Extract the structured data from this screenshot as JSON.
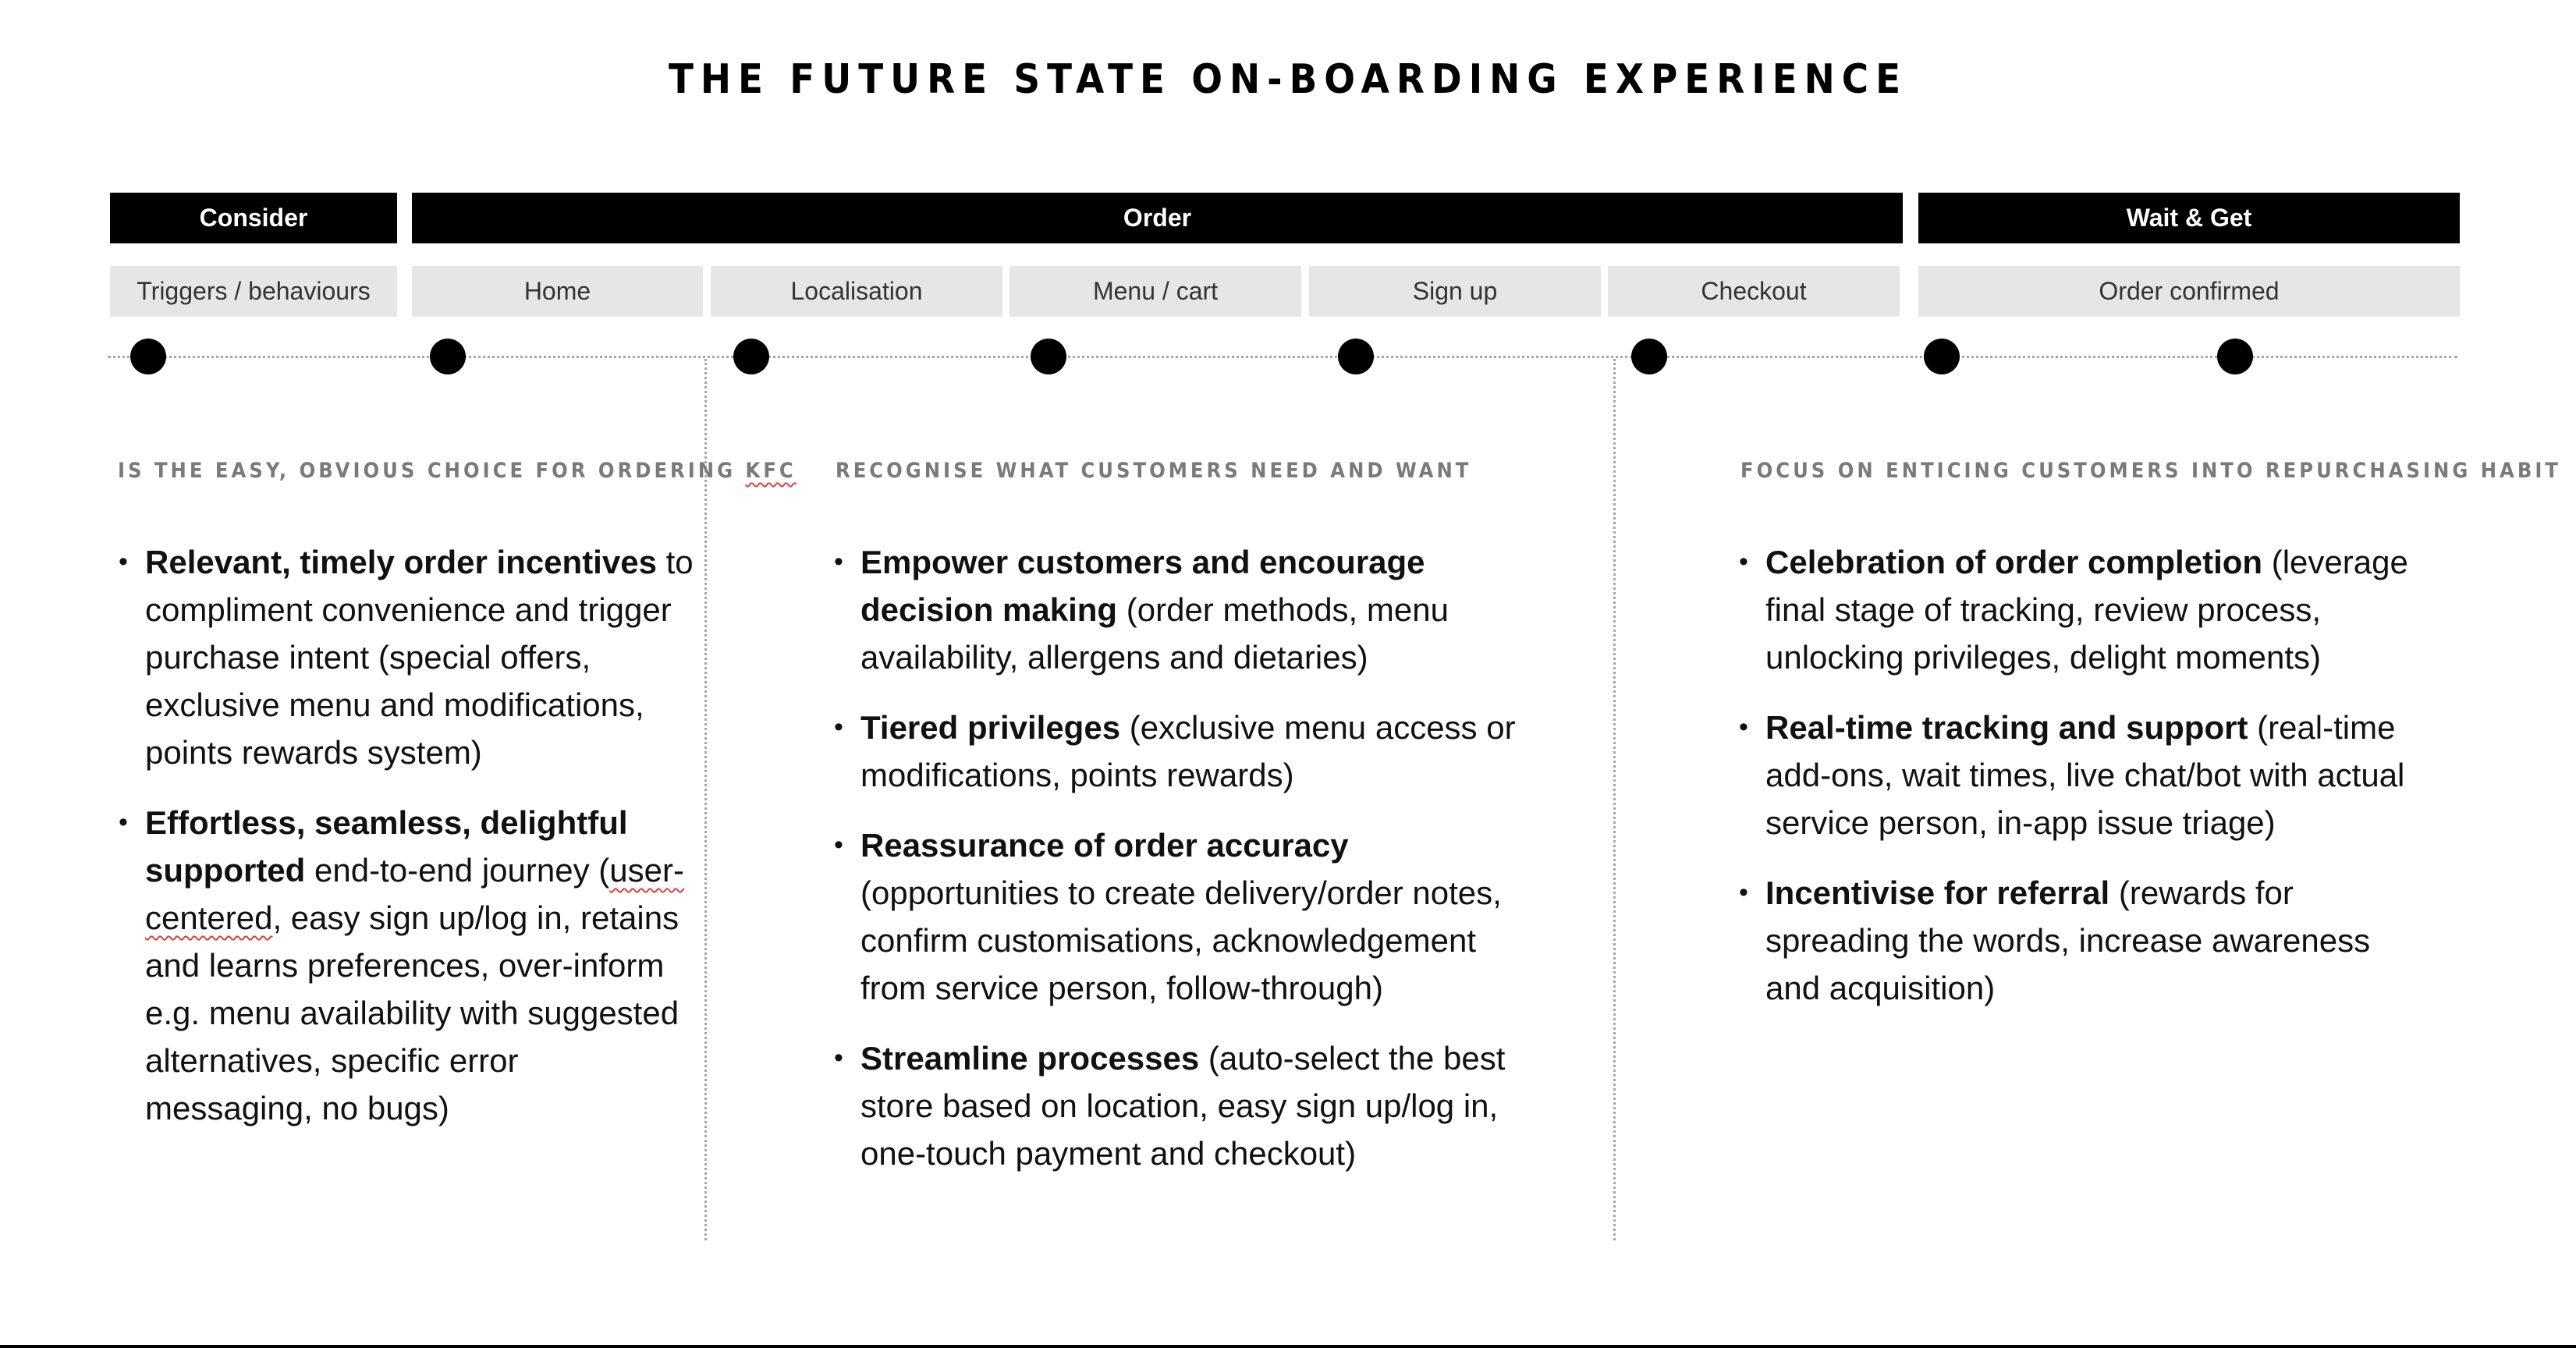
{
  "title": "THE FUTURE STATE ON-BOARDING EXPERIENCE",
  "phases": [
    "Consider",
    "Order",
    "Wait & Get"
  ],
  "steps": [
    "Triggers / behaviours",
    "Home",
    "Localisation",
    "Menu / cart",
    "Sign up",
    "Checkout",
    "Order confirmed"
  ],
  "columns": [
    {
      "heading": "IS THE EASY, OBVIOUS CHOICE FOR ORDERING ",
      "heading_brand": "KFC",
      "bullets": [
        {
          "bold": "Relevant, timely order incentives",
          "rest": " to compliment convenience and trigger purchase intent (special offers, exclusive menu and modifications, points rewards system)"
        },
        {
          "bold": "Effortless, seamless, delightful supported",
          "rest_before": " end-to-end journey (",
          "wavy": "user-centered",
          "rest_after": ", easy sign up/log in, retains and learns preferences, over-inform e.g. menu availability with suggested alternatives, specific error messaging, no bugs)"
        }
      ]
    },
    {
      "heading": "RECOGNISE WHAT CUSTOMERS NEED AND WANT",
      "bullets": [
        {
          "bold": "Empower customers and encourage decision making",
          "rest": " (order methods, menu availability, allergens and dietaries)"
        },
        {
          "bold": "Tiered privileges",
          "rest": " (exclusive menu access or modifications, points rewards)"
        },
        {
          "bold": "Reassurance of order accuracy",
          "rest": " (opportunities to create delivery/order notes, confirm customisations, acknowledgement from service person, follow-through)"
        },
        {
          "bold": "Streamline processes",
          "rest": " (auto-select the best store based on location, easy sign up/log in, one-touch payment and checkout)"
        }
      ]
    },
    {
      "heading": "FOCUS ON ENTICING CUSTOMERS INTO REPURCHASING HABIT",
      "bullets": [
        {
          "bold": "Celebration of order completion",
          "rest": " (leverage final stage of tracking, review process, unlocking privileges, delight moments)"
        },
        {
          "bold": "Real-time tracking and support",
          "rest": " (real-time add-ons, wait times, live chat/bot with actual service person, in-app issue triage)"
        },
        {
          "bold": "Incentivise for referral",
          "rest": " (rewards for spreading the words, increase awareness and acquisition)"
        }
      ]
    }
  ]
}
